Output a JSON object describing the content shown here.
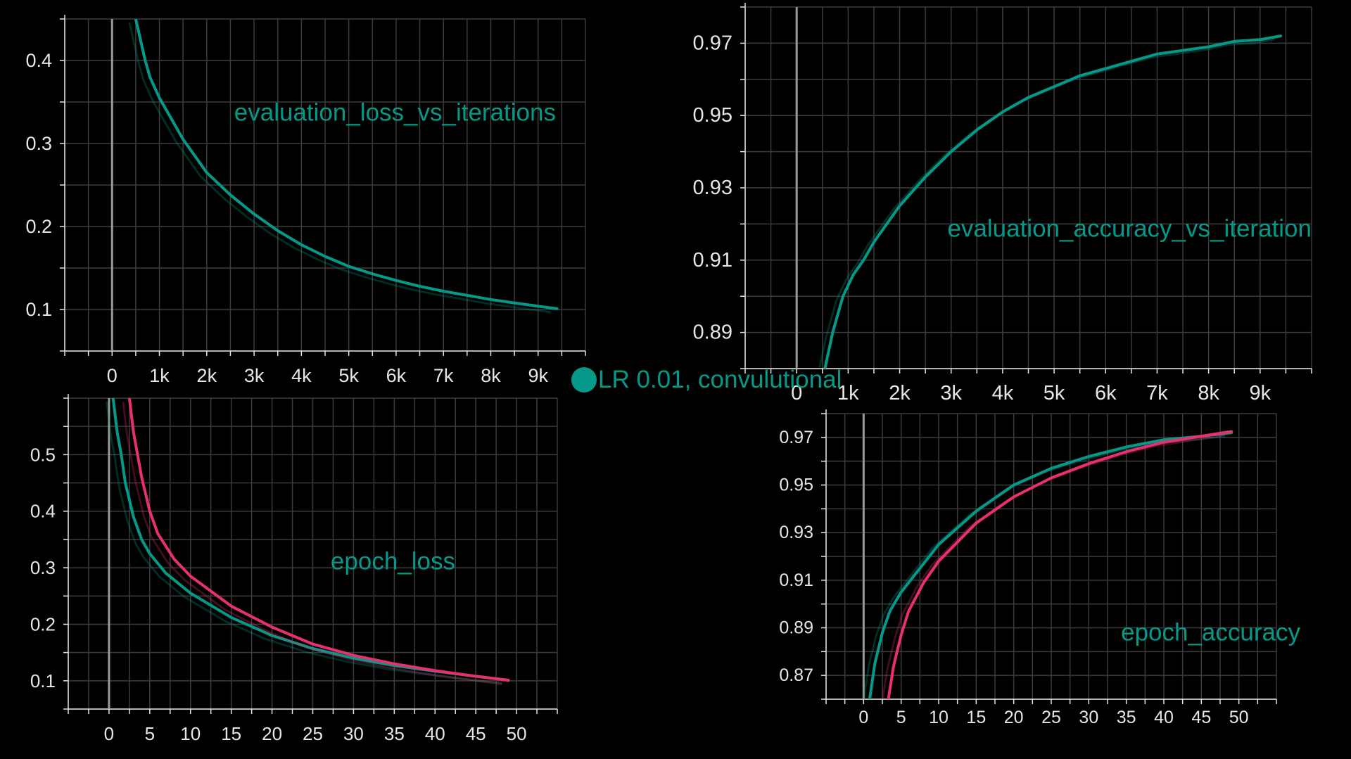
{
  "colors": {
    "teal": "#05998a",
    "pink": "#e8306f",
    "background": "#000000",
    "grid": "#3c3c3c",
    "text": "#e6e6e6"
  },
  "legend": {
    "label": "LR 0.01, convulutional"
  },
  "chart_data": [
    {
      "type": "line",
      "title": "evaluation_loss_vs_iterations",
      "xlabel": "",
      "ylabel": "",
      "xlim": [
        -1000,
        10000
      ],
      "ylim": [
        0.05,
        0.45
      ],
      "x_ticks": [
        0,
        1000,
        2000,
        3000,
        4000,
        5000,
        6000,
        7000,
        8000,
        9000
      ],
      "x_tick_labels": [
        "0",
        "1k",
        "2k",
        "3k",
        "4k",
        "5k",
        "6k",
        "7k",
        "8k",
        "9k"
      ],
      "y_ticks": [
        0.1,
        0.2,
        0.3,
        0.4
      ],
      "y_tick_labels": [
        "0.1",
        "0.2",
        "0.3",
        "0.4"
      ],
      "grid": true,
      "series": [
        {
          "name": "LR 0.01, convulutional",
          "color": "#05998a",
          "x": [
            500,
            600,
            700,
            800,
            1000,
            1200,
            1500,
            2000,
            2500,
            3000,
            3500,
            4000,
            4500,
            5000,
            5500,
            6000,
            6500,
            7000,
            7500,
            8000,
            8500,
            9000,
            9400
          ],
          "y": [
            0.45,
            0.425,
            0.4,
            0.38,
            0.355,
            0.335,
            0.305,
            0.265,
            0.238,
            0.215,
            0.195,
            0.178,
            0.164,
            0.152,
            0.143,
            0.135,
            0.128,
            0.122,
            0.117,
            0.112,
            0.108,
            0.104,
            0.101
          ]
        }
      ]
    },
    {
      "type": "line",
      "title": "evaluation_accuracy_vs_iteration",
      "xlabel": "",
      "ylabel": "",
      "xlim": [
        -1000,
        10000
      ],
      "ylim": [
        0.88,
        0.98
      ],
      "x_ticks": [
        0,
        1000,
        2000,
        3000,
        4000,
        5000,
        6000,
        7000,
        8000,
        9000
      ],
      "x_tick_labels": [
        "0",
        "1k",
        "2k",
        "3k",
        "4k",
        "5k",
        "6k",
        "7k",
        "8k",
        "9k"
      ],
      "y_ticks": [
        0.89,
        0.91,
        0.93,
        0.95,
        0.97
      ],
      "y_tick_labels": [
        "0.89",
        "0.91",
        "0.93",
        "0.95",
        "0.97"
      ],
      "grid": true,
      "series": [
        {
          "name": "LR 0.01, convulutional",
          "color": "#05998a",
          "x": [
            550,
            700,
            900,
            1100,
            1300,
            1500,
            2000,
            2500,
            3000,
            3500,
            4000,
            4500,
            5000,
            5500,
            6000,
            6500,
            7000,
            7500,
            8000,
            8500,
            9000,
            9400
          ],
          "y": [
            0.88,
            0.89,
            0.9,
            0.906,
            0.91,
            0.915,
            0.925,
            0.933,
            0.94,
            0.946,
            0.951,
            0.955,
            0.958,
            0.961,
            0.963,
            0.965,
            0.967,
            0.968,
            0.969,
            0.9705,
            0.971,
            0.972
          ]
        }
      ]
    },
    {
      "type": "line",
      "title": "epoch_loss",
      "xlabel": "",
      "ylabel": "",
      "xlim": [
        -5,
        55
      ],
      "ylim": [
        0.05,
        0.6
      ],
      "x_ticks": [
        0,
        5,
        10,
        15,
        20,
        25,
        30,
        35,
        40,
        45,
        50
      ],
      "x_tick_labels": [
        "0",
        "5",
        "10",
        "15",
        "20",
        "25",
        "30",
        "35",
        "40",
        "45",
        "50"
      ],
      "y_ticks": [
        0.1,
        0.2,
        0.3,
        0.4,
        0.5
      ],
      "y_tick_labels": [
        "0.1",
        "0.2",
        "0.3",
        "0.4",
        "0.5"
      ],
      "grid": true,
      "series": [
        {
          "color": "#05998a",
          "x": [
            0.5,
            1,
            1.5,
            2,
            3,
            4,
            5,
            7,
            10,
            15,
            20,
            25,
            30,
            35,
            40,
            45,
            49
          ],
          "y": [
            0.6,
            0.54,
            0.5,
            0.45,
            0.39,
            0.35,
            0.325,
            0.29,
            0.255,
            0.212,
            0.18,
            0.157,
            0.14,
            0.127,
            0.117,
            0.108,
            0.101
          ]
        },
        {
          "color": "#e8306f",
          "x": [
            2.5,
            3,
            4,
            5,
            6,
            8,
            10,
            15,
            20,
            25,
            30,
            35,
            40,
            45,
            49
          ],
          "y": [
            0.6,
            0.54,
            0.46,
            0.4,
            0.36,
            0.315,
            0.285,
            0.232,
            0.195,
            0.165,
            0.145,
            0.13,
            0.118,
            0.108,
            0.101
          ]
        }
      ]
    },
    {
      "type": "line",
      "title": "epoch_accuracy",
      "xlabel": "",
      "ylabel": "",
      "xlim": [
        -5,
        55
      ],
      "ylim": [
        0.86,
        0.98
      ],
      "x_ticks": [
        0,
        5,
        10,
        15,
        20,
        25,
        30,
        35,
        40,
        45,
        50
      ],
      "x_tick_labels": [
        "0",
        "5",
        "10",
        "15",
        "20",
        "25",
        "30",
        "35",
        "40",
        "45",
        "50"
      ],
      "y_ticks": [
        0.87,
        0.89,
        0.91,
        0.93,
        0.95,
        0.97
      ],
      "y_tick_labels": [
        "0.87",
        "0.89",
        "0.91",
        "0.93",
        "0.95",
        "0.97"
      ],
      "grid": true,
      "series": [
        {
          "color": "#05998a",
          "x": [
            0.8,
            1.5,
            2.5,
            3.5,
            5,
            7,
            10,
            15,
            20,
            25,
            30,
            35,
            40,
            45,
            49
          ],
          "y": [
            0.86,
            0.875,
            0.888,
            0.897,
            0.905,
            0.913,
            0.925,
            0.939,
            0.95,
            0.957,
            0.962,
            0.966,
            0.969,
            0.9705,
            0.972
          ]
        },
        {
          "color": "#e8306f",
          "x": [
            3.3,
            4,
            5,
            6,
            8,
            10,
            15,
            20,
            25,
            30,
            35,
            40,
            45,
            49
          ],
          "y": [
            0.86,
            0.874,
            0.887,
            0.897,
            0.909,
            0.918,
            0.934,
            0.945,
            0.953,
            0.959,
            0.964,
            0.968,
            0.9705,
            0.9725
          ]
        }
      ]
    }
  ]
}
